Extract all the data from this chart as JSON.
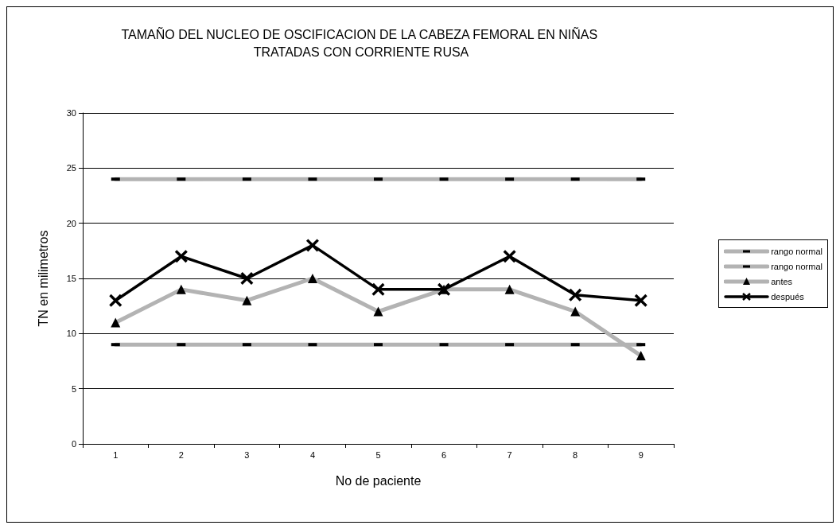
{
  "chart_data": {
    "type": "line",
    "title": "TAMAÑO DEL NUCLEO DE OSCIFICACION DE LA CABEZA FEMORAL EN NIÑAS TRATADAS CON CORRIENTE RUSA",
    "xlabel": "No de paciente",
    "ylabel": "TN en milimetros",
    "categories": [
      "1",
      "2",
      "3",
      "4",
      "5",
      "6",
      "7",
      "8",
      "9"
    ],
    "series": [
      {
        "name": "rango normal",
        "color": "#b3b3b3",
        "marker": "square",
        "values": [
          24,
          24,
          24,
          24,
          24,
          24,
          24,
          24,
          24
        ]
      },
      {
        "name": "rango normal",
        "color": "#b3b3b3",
        "marker": "square",
        "values": [
          9,
          9,
          9,
          9,
          9,
          9,
          9,
          9,
          9
        ]
      },
      {
        "name": "antes",
        "color": "#b3b3b3",
        "marker": "triangle",
        "values": [
          11,
          14,
          13,
          15,
          12,
          14,
          14,
          12,
          8
        ]
      },
      {
        "name": "después",
        "color": "#000000",
        "marker": "cross",
        "values": [
          13,
          17,
          15,
          18,
          14,
          14,
          17,
          13.5,
          13
        ]
      }
    ],
    "ylim": [
      0,
      30
    ],
    "yticks": [
      0,
      5,
      10,
      15,
      20,
      25,
      30
    ],
    "grid": "y",
    "legend": "right",
    "line_style": "solid"
  }
}
